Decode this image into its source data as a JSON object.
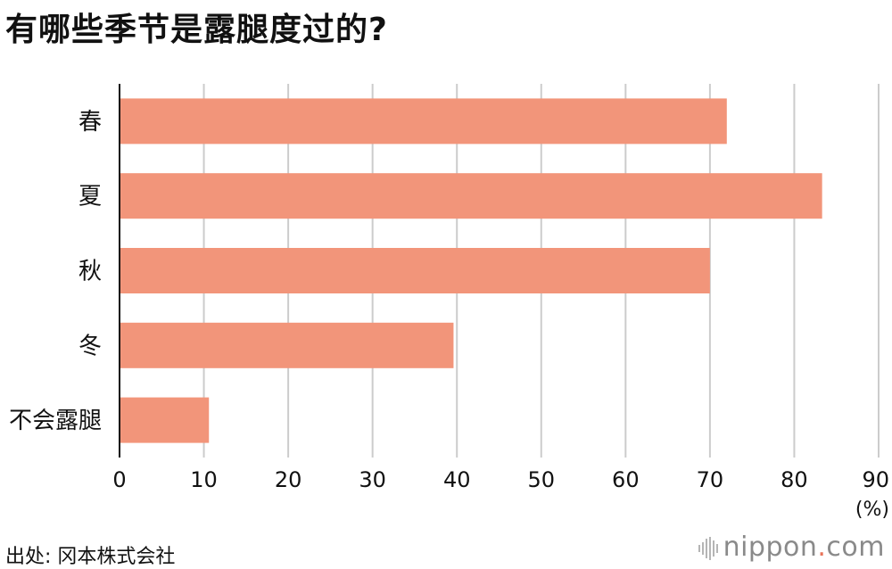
{
  "header": {
    "title": "有哪些季节是露腿度过的?"
  },
  "chart_data": {
    "type": "bar",
    "orientation": "horizontal",
    "title": "有哪些季节是露腿度过的?",
    "categories": [
      "春",
      "夏",
      "秋",
      "冬",
      "不会露腿"
    ],
    "values": [
      72,
      83.3,
      70,
      39.6,
      10.6
    ],
    "xlim": [
      0,
      90
    ],
    "xticks": [
      0,
      10,
      20,
      30,
      40,
      50,
      60,
      70,
      80,
      90
    ],
    "xlabel": "(%)",
    "grid": true,
    "bar_color": "#f2957a",
    "grid_color": "#cccccc"
  },
  "footer": {
    "source": "出处: 冈本株式会社",
    "brand_name": "nippon",
    "brand_dot": ".",
    "brand_tld": "com",
    "brand_accent": "#e8745a"
  }
}
